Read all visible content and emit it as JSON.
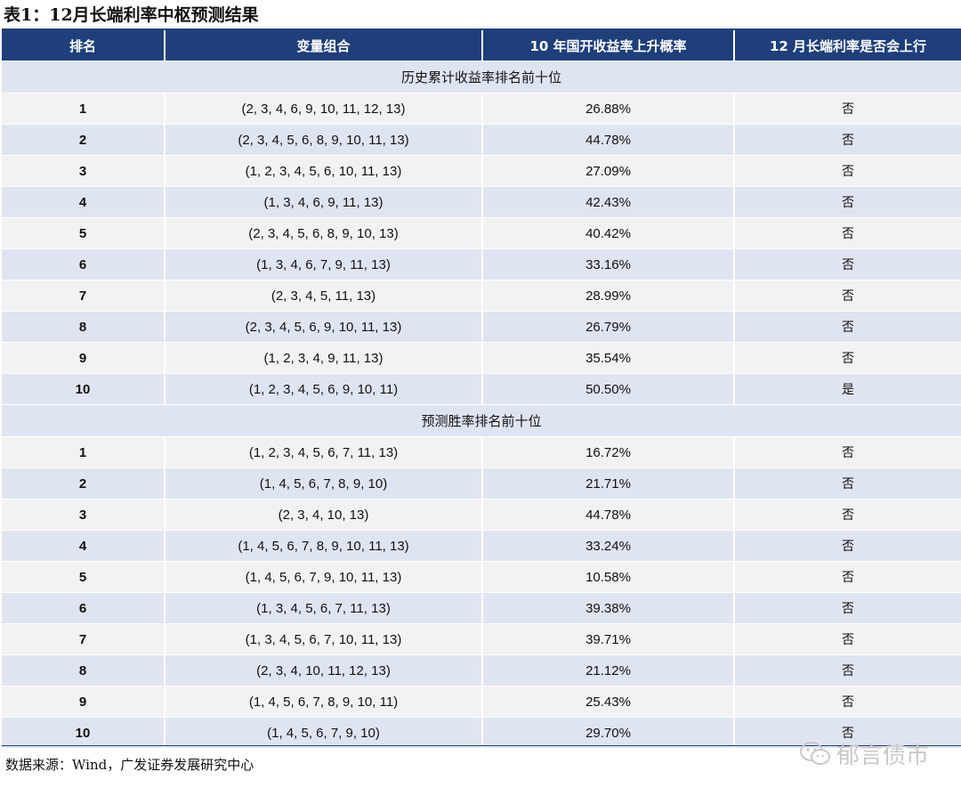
{
  "title": "表1：12月长端利率中枢预测结果",
  "columns": [
    "排名",
    "变量组合",
    "10 年国开收益率上升概率",
    "12 月长端利率是否会上行"
  ],
  "sections": [
    {
      "label": "历史累计收益率排名前十位",
      "rows": [
        {
          "rank": "1",
          "combo": "(2, 3, 4, 6, 9, 10, 11, 12, 13)",
          "prob": "26.88%",
          "up": "否"
        },
        {
          "rank": "2",
          "combo": "(2, 3, 4, 5, 6, 8, 9, 10, 11, 13)",
          "prob": "44.78%",
          "up": "否"
        },
        {
          "rank": "3",
          "combo": "(1, 2, 3, 4, 5, 6, 10, 11, 13)",
          "prob": "27.09%",
          "up": "否"
        },
        {
          "rank": "4",
          "combo": "(1, 3, 4, 6, 9, 11, 13)",
          "prob": "42.43%",
          "up": "否"
        },
        {
          "rank": "5",
          "combo": "(2, 3, 4, 5, 6, 8, 9, 10, 13)",
          "prob": "40.42%",
          "up": "否"
        },
        {
          "rank": "6",
          "combo": "(1, 3, 4, 6, 7, 9, 11, 13)",
          "prob": "33.16%",
          "up": "否"
        },
        {
          "rank": "7",
          "combo": "(2, 3, 4, 5, 11, 13)",
          "prob": "28.99%",
          "up": "否"
        },
        {
          "rank": "8",
          "combo": "(2, 3, 4, 5, 6, 9, 10, 11, 13)",
          "prob": "26.79%",
          "up": "否"
        },
        {
          "rank": "9",
          "combo": "(1, 2, 3, 4, 9, 11, 13)",
          "prob": "35.54%",
          "up": "否"
        },
        {
          "rank": "10",
          "combo": "(1, 2, 3, 4, 5, 6, 9, 10, 11)",
          "prob": "50.50%",
          "up": "是"
        }
      ]
    },
    {
      "label": "预测胜率排名前十位",
      "rows": [
        {
          "rank": "1",
          "combo": "(1, 2, 3, 4, 5, 6, 7, 11, 13)",
          "prob": "16.72%",
          "up": "否"
        },
        {
          "rank": "2",
          "combo": "(1, 4, 5, 6, 7, 8, 9, 10)",
          "prob": "21.71%",
          "up": "否"
        },
        {
          "rank": "3",
          "combo": "(2, 3, 4, 10, 13)",
          "prob": "44.78%",
          "up": "否"
        },
        {
          "rank": "4",
          "combo": "(1, 4, 5, 6, 7, 8, 9, 10, 11, 13)",
          "prob": "33.24%",
          "up": "否"
        },
        {
          "rank": "5",
          "combo": "(1, 4, 5, 6, 7, 9, 10, 11, 13)",
          "prob": "10.58%",
          "up": "否"
        },
        {
          "rank": "6",
          "combo": "(1, 3, 4, 5, 6, 7, 11, 13)",
          "prob": "39.38%",
          "up": "否"
        },
        {
          "rank": "7",
          "combo": "(1, 3, 4, 5, 6, 7, 10, 11, 13)",
          "prob": "39.71%",
          "up": "否"
        },
        {
          "rank": "8",
          "combo": "(2, 3, 4, 10, 11, 12, 13)",
          "prob": "21.12%",
          "up": "否"
        },
        {
          "rank": "9",
          "combo": "(1, 4, 5, 6, 7, 8, 9, 10, 11)",
          "prob": "25.43%",
          "up": "否"
        },
        {
          "rank": "10",
          "combo": "(1, 4, 5, 6, 7, 9, 10)",
          "prob": "29.70%",
          "up": "否"
        }
      ]
    }
  ],
  "source": "数据来源：Wind，广发证券发展研究中心",
  "watermark": "郁言债市",
  "colors": {
    "header_bg": "#1f3f7a",
    "section_bg": "#dfe5f0",
    "row_light": "#f2f2f2",
    "row_dark": "#dfe5f0"
  }
}
